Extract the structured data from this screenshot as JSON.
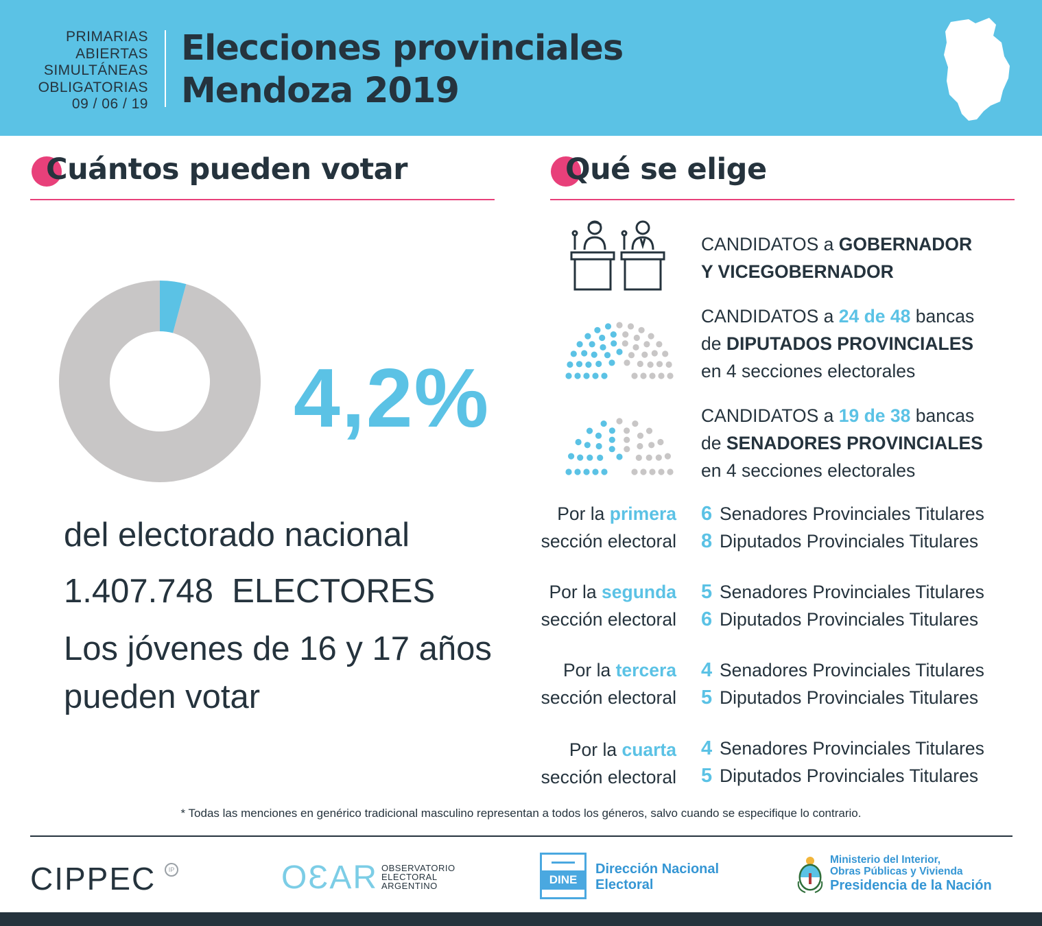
{
  "header": {
    "paso_lines": [
      "PRIMARIAS",
      "ABIERTAS",
      "SIMULTÁNEAS",
      "OBLIGATORIAS",
      "09 / 06 / 19"
    ],
    "title_line1": "Elecciones provinciales",
    "title_line2": "Mendoza 2019"
  },
  "colors": {
    "accent": "#5bc2e5",
    "pink": "#e8407a",
    "dark": "#25333d",
    "grey": "#c8c6c6"
  },
  "left_section": {
    "title_initial": "C",
    "title_rest": "uántos pueden votar",
    "percent_value": 4.2,
    "percent_label": "4,2%",
    "line1": "del electorado nacional",
    "electores_number": "1.407.748",
    "electores_label": "ELECTORES",
    "youth_line1": "Los jóvenes de 16 y 17 años",
    "youth_line2": "pueden votar"
  },
  "right_section": {
    "title_initial": "Q",
    "title_rest": "ué se elige",
    "governor": {
      "line1_prefix": "CANDIDATOS a ",
      "line1_bold": "GOBERNADOR",
      "line2_bold": "Y VICEGOBERNADOR"
    },
    "diputados": {
      "prefix": "CANDIDATOS a ",
      "highlight": "24 de 48",
      "suffix": " bancas",
      "line2_prefix": "de ",
      "line2_bold": "DIPUTADOS PROVINCIALES",
      "line3": "en 4 secciones electorales",
      "seats_elected": 24,
      "seats_total": 48
    },
    "senadores": {
      "prefix": "CANDIDATOS a ",
      "highlight": "19 de 38",
      "suffix": " bancas",
      "line2_prefix": "de ",
      "line2_bold": "SENADORES PROVINCIALES",
      "line3": "en 4 secciones electorales",
      "seats_elected": 19,
      "seats_total": 38
    },
    "sections": [
      {
        "por": "Por la ",
        "ordinal": "primera",
        "seccion": "sección electoral",
        "senadores_num": "6",
        "senadores_label": "Senadores Provinciales Titulares",
        "diputados_num": "8",
        "diputados_label": "Diputados Provinciales Titulares"
      },
      {
        "por": "Por la ",
        "ordinal": "segunda",
        "seccion": "sección electoral",
        "senadores_num": "5",
        "senadores_label": "Senadores Provinciales Titulares",
        "diputados_num": "6",
        "diputados_label": "Diputados Provinciales Titulares"
      },
      {
        "por": "Por la ",
        "ordinal": "tercera",
        "seccion": "sección electoral",
        "senadores_num": "4",
        "senadores_label": "Senadores Provinciales Titulares",
        "diputados_num": "5",
        "diputados_label": "Diputados Provinciales Titulares"
      },
      {
        "por": "Por la ",
        "ordinal": "cuarta",
        "seccion": "sección electoral",
        "senadores_num": "4",
        "senadores_label": "Senadores Provinciales Titulares",
        "diputados_num": "5",
        "diputados_label": "Diputados Provinciales Titulares"
      }
    ]
  },
  "footnote": "* Todas las menciones en genérico tradicional masculino representan a todos los géneros, salvo cuando se especifique lo contrario.",
  "logos": {
    "cippec": "CIPPEC",
    "cippec_badge": "IP",
    "oear": "OƐAR",
    "oear_sub": [
      "OBSERVATORIO",
      "ELECTORAL",
      "ARGENTINO"
    ],
    "dine_box": "DINE",
    "dine_line1": "Dirección Nacional",
    "dine_line2": "Electoral",
    "ministerio_line1": "Ministerio del Interior,",
    "ministerio_line2": "Obras Públicas y Vivienda",
    "ministerio_line3": "Presidencia de la Nación"
  }
}
